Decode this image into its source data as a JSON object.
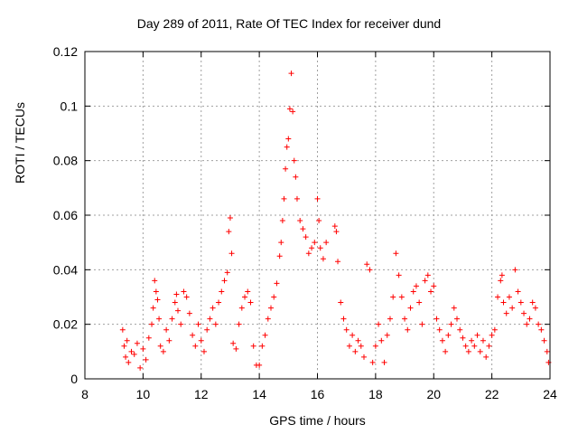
{
  "chart_data": {
    "type": "scatter",
    "title": "Day 289 of 2011, Rate Of TEC Index for receiver dund",
    "xlabel": "GPS time / hours",
    "ylabel": "ROTI / TECUs",
    "xlim": [
      8,
      24
    ],
    "ylim": [
      0,
      0.12
    ],
    "xticks": [
      "8",
      "10",
      "12",
      "14",
      "16",
      "18",
      "20",
      "22",
      "24"
    ],
    "yticks": [
      "0",
      "0.02",
      "0.04",
      "0.06",
      "0.08",
      "0.1",
      "0.12"
    ],
    "grid": true,
    "marker": "+",
    "color": "#ff0000",
    "points": [
      [
        9.3,
        0.018
      ],
      [
        9.35,
        0.012
      ],
      [
        9.4,
        0.008
      ],
      [
        9.45,
        0.014
      ],
      [
        9.5,
        0.006
      ],
      [
        9.6,
        0.01
      ],
      [
        9.7,
        0.009
      ],
      [
        9.8,
        0.013
      ],
      [
        9.9,
        0.004
      ],
      [
        10.0,
        0.011
      ],
      [
        10.1,
        0.007
      ],
      [
        10.2,
        0.015
      ],
      [
        10.3,
        0.02
      ],
      [
        10.35,
        0.026
      ],
      [
        10.4,
        0.036
      ],
      [
        10.45,
        0.032
      ],
      [
        10.5,
        0.029
      ],
      [
        10.55,
        0.022
      ],
      [
        10.6,
        0.012
      ],
      [
        10.7,
        0.01
      ],
      [
        10.8,
        0.018
      ],
      [
        10.9,
        0.014
      ],
      [
        11.0,
        0.022
      ],
      [
        11.1,
        0.028
      ],
      [
        11.15,
        0.031
      ],
      [
        11.2,
        0.025
      ],
      [
        11.3,
        0.02
      ],
      [
        11.4,
        0.032
      ],
      [
        11.5,
        0.03
      ],
      [
        11.6,
        0.024
      ],
      [
        11.7,
        0.016
      ],
      [
        11.8,
        0.012
      ],
      [
        11.9,
        0.02
      ],
      [
        12.0,
        0.014
      ],
      [
        12.1,
        0.01
      ],
      [
        12.2,
        0.018
      ],
      [
        12.3,
        0.022
      ],
      [
        12.4,
        0.026
      ],
      [
        12.5,
        0.02
      ],
      [
        12.6,
        0.028
      ],
      [
        12.7,
        0.032
      ],
      [
        12.8,
        0.036
      ],
      [
        12.9,
        0.039
      ],
      [
        12.95,
        0.054
      ],
      [
        13.0,
        0.059
      ],
      [
        13.05,
        0.046
      ],
      [
        13.1,
        0.013
      ],
      [
        13.2,
        0.011
      ],
      [
        13.3,
        0.02
      ],
      [
        13.4,
        0.026
      ],
      [
        13.5,
        0.03
      ],
      [
        13.6,
        0.032
      ],
      [
        13.7,
        0.028
      ],
      [
        13.8,
        0.012
      ],
      [
        13.9,
        0.005
      ],
      [
        14.0,
        0.005
      ],
      [
        14.1,
        0.012
      ],
      [
        14.2,
        0.016
      ],
      [
        14.3,
        0.022
      ],
      [
        14.4,
        0.026
      ],
      [
        14.5,
        0.03
      ],
      [
        14.6,
        0.035
      ],
      [
        14.7,
        0.045
      ],
      [
        14.75,
        0.05
      ],
      [
        14.8,
        0.058
      ],
      [
        14.85,
        0.066
      ],
      [
        14.9,
        0.077
      ],
      [
        14.95,
        0.085
      ],
      [
        15.0,
        0.088
      ],
      [
        15.05,
        0.099
      ],
      [
        15.1,
        0.112
      ],
      [
        15.15,
        0.098
      ],
      [
        15.2,
        0.08
      ],
      [
        15.25,
        0.074
      ],
      [
        15.3,
        0.066
      ],
      [
        15.4,
        0.058
      ],
      [
        15.5,
        0.055
      ],
      [
        15.6,
        0.052
      ],
      [
        15.7,
        0.046
      ],
      [
        15.8,
        0.048
      ],
      [
        15.9,
        0.05
      ],
      [
        16.0,
        0.066
      ],
      [
        16.05,
        0.058
      ],
      [
        16.1,
        0.048
      ],
      [
        16.2,
        0.044
      ],
      [
        16.3,
        0.05
      ],
      [
        16.6,
        0.056
      ],
      [
        16.65,
        0.054
      ],
      [
        16.7,
        0.043
      ],
      [
        16.8,
        0.028
      ],
      [
        16.9,
        0.022
      ],
      [
        17.0,
        0.018
      ],
      [
        17.1,
        0.012
      ],
      [
        17.2,
        0.016
      ],
      [
        17.3,
        0.01
      ],
      [
        17.4,
        0.014
      ],
      [
        17.5,
        0.012
      ],
      [
        17.6,
        0.008
      ],
      [
        17.7,
        0.042
      ],
      [
        17.8,
        0.04
      ],
      [
        17.9,
        0.006
      ],
      [
        18.0,
        0.012
      ],
      [
        18.1,
        0.02
      ],
      [
        18.2,
        0.014
      ],
      [
        18.3,
        0.006
      ],
      [
        18.4,
        0.016
      ],
      [
        18.5,
        0.022
      ],
      [
        18.6,
        0.03
      ],
      [
        18.7,
        0.046
      ],
      [
        18.8,
        0.038
      ],
      [
        18.9,
        0.03
      ],
      [
        19.0,
        0.022
      ],
      [
        19.1,
        0.018
      ],
      [
        19.2,
        0.026
      ],
      [
        19.3,
        0.032
      ],
      [
        19.4,
        0.034
      ],
      [
        19.5,
        0.028
      ],
      [
        19.6,
        0.02
      ],
      [
        19.7,
        0.036
      ],
      [
        19.8,
        0.038
      ],
      [
        19.9,
        0.032
      ],
      [
        20.0,
        0.034
      ],
      [
        20.1,
        0.022
      ],
      [
        20.2,
        0.018
      ],
      [
        20.3,
        0.014
      ],
      [
        20.4,
        0.01
      ],
      [
        20.5,
        0.016
      ],
      [
        20.6,
        0.02
      ],
      [
        20.7,
        0.026
      ],
      [
        20.8,
        0.022
      ],
      [
        20.9,
        0.018
      ],
      [
        21.0,
        0.015
      ],
      [
        21.1,
        0.012
      ],
      [
        21.2,
        0.01
      ],
      [
        21.3,
        0.014
      ],
      [
        21.4,
        0.012
      ],
      [
        21.5,
        0.016
      ],
      [
        21.6,
        0.01
      ],
      [
        21.7,
        0.014
      ],
      [
        21.8,
        0.008
      ],
      [
        21.9,
        0.012
      ],
      [
        22.0,
        0.016
      ],
      [
        22.1,
        0.018
      ],
      [
        22.2,
        0.03
      ],
      [
        22.3,
        0.036
      ],
      [
        22.35,
        0.038
      ],
      [
        22.4,
        0.028
      ],
      [
        22.5,
        0.024
      ],
      [
        22.6,
        0.03
      ],
      [
        22.7,
        0.026
      ],
      [
        22.8,
        0.04
      ],
      [
        22.9,
        0.032
      ],
      [
        23.0,
        0.028
      ],
      [
        23.1,
        0.024
      ],
      [
        23.2,
        0.02
      ],
      [
        23.3,
        0.022
      ],
      [
        23.4,
        0.028
      ],
      [
        23.5,
        0.026
      ],
      [
        23.6,
        0.02
      ],
      [
        23.7,
        0.018
      ],
      [
        23.8,
        0.014
      ],
      [
        23.9,
        0.01
      ],
      [
        23.95,
        0.006
      ]
    ]
  }
}
